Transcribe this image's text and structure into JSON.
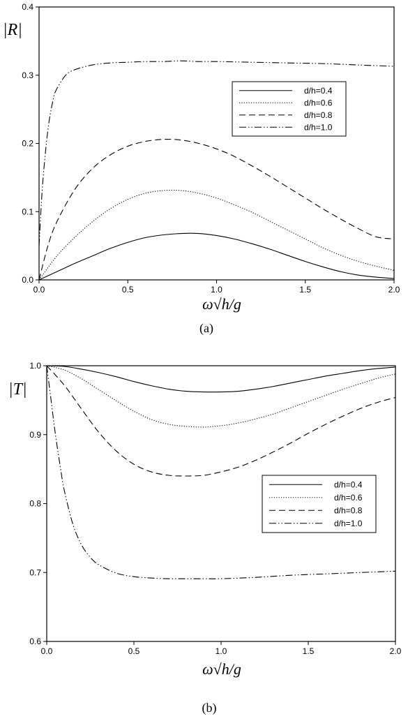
{
  "chart_data": [
    {
      "type": "line",
      "caption": "(a)",
      "ylabel": "|R|",
      "xlabel": "ω√h/g",
      "xlim": [
        0,
        2.0
      ],
      "ylim": [
        0,
        0.4
      ],
      "xticks": [
        "0.0",
        "0.5",
        "1.0",
        "1.5",
        "2.0"
      ],
      "yticks": [
        "0.0",
        "0.1",
        "0.2",
        "0.3",
        "0.4"
      ],
      "legend_position": "top-right",
      "grid": false,
      "series": [
        {
          "name": "d/h=0.4",
          "style": "solid",
          "x": [
            0,
            0.1,
            0.2,
            0.3,
            0.4,
            0.5,
            0.6,
            0.7,
            0.8,
            0.9,
            1.0,
            1.1,
            1.2,
            1.3,
            1.4,
            1.5,
            1.6,
            1.7,
            1.8,
            1.9,
            2.0
          ],
          "y": [
            0,
            0.012,
            0.024,
            0.035,
            0.046,
            0.055,
            0.062,
            0.066,
            0.068,
            0.068,
            0.065,
            0.06,
            0.053,
            0.045,
            0.036,
            0.027,
            0.019,
            0.012,
            0.007,
            0.004,
            0.002
          ]
        },
        {
          "name": "d/h=0.6",
          "style": "dotted",
          "x": [
            0,
            0.1,
            0.2,
            0.3,
            0.4,
            0.5,
            0.6,
            0.7,
            0.8,
            0.9,
            1.0,
            1.1,
            1.2,
            1.3,
            1.4,
            1.5,
            1.6,
            1.7,
            1.8,
            1.9,
            2.0
          ],
          "y": [
            0,
            0.035,
            0.062,
            0.085,
            0.104,
            0.118,
            0.127,
            0.131,
            0.131,
            0.127,
            0.12,
            0.11,
            0.099,
            0.086,
            0.073,
            0.06,
            0.047,
            0.036,
            0.027,
            0.02,
            0.014
          ]
        },
        {
          "name": "d/h=0.8",
          "style": "dashed",
          "x": [
            0,
            0.05,
            0.1,
            0.2,
            0.3,
            0.4,
            0.5,
            0.6,
            0.7,
            0.8,
            0.9,
            1.0,
            1.1,
            1.2,
            1.3,
            1.4,
            1.5,
            1.6,
            1.7,
            1.8,
            1.9,
            2.0
          ],
          "y": [
            0,
            0.05,
            0.085,
            0.132,
            0.163,
            0.183,
            0.196,
            0.203,
            0.206,
            0.205,
            0.2,
            0.192,
            0.181,
            0.167,
            0.152,
            0.136,
            0.12,
            0.104,
            0.089,
            0.075,
            0.063,
            0.06
          ]
        },
        {
          "name": "d/h=1.0",
          "style": "dashdotdot",
          "x": [
            0,
            0.02,
            0.05,
            0.08,
            0.1,
            0.15,
            0.2,
            0.3,
            0.4,
            0.5,
            0.6,
            0.7,
            0.8,
            0.9,
            1.0,
            1.2,
            1.4,
            1.6,
            1.8,
            2.0
          ],
          "y": [
            0.05,
            0.14,
            0.22,
            0.265,
            0.28,
            0.3,
            0.308,
            0.315,
            0.318,
            0.319,
            0.32,
            0.32,
            0.321,
            0.32,
            0.32,
            0.319,
            0.318,
            0.317,
            0.315,
            0.313
          ]
        }
      ]
    },
    {
      "type": "line",
      "caption": "(b)",
      "ylabel": "|T|",
      "xlabel": "ω√h/g",
      "xlim": [
        0,
        2.0
      ],
      "ylim": [
        0.6,
        1.0
      ],
      "xticks": [
        "0.0",
        "0.5",
        "1.0",
        "1.5",
        "2.0"
      ],
      "yticks": [
        "0.6",
        "0.7",
        "0.8",
        "0.9",
        "1.0"
      ],
      "legend_position": "center-right",
      "grid": false,
      "series": [
        {
          "name": "d/h=0.4",
          "style": "solid",
          "x": [
            0,
            0.1,
            0.2,
            0.3,
            0.4,
            0.5,
            0.6,
            0.7,
            0.8,
            0.9,
            1.0,
            1.1,
            1.2,
            1.3,
            1.4,
            1.5,
            1.6,
            1.7,
            1.8,
            1.9,
            2.0
          ],
          "y": [
            1.0,
            0.999,
            0.995,
            0.99,
            0.984,
            0.977,
            0.971,
            0.966,
            0.963,
            0.962,
            0.962,
            0.963,
            0.966,
            0.97,
            0.975,
            0.98,
            0.985,
            0.989,
            0.993,
            0.996,
            0.998
          ]
        },
        {
          "name": "d/h=0.6",
          "style": "dotted",
          "x": [
            0,
            0.1,
            0.2,
            0.3,
            0.4,
            0.5,
            0.6,
            0.7,
            0.8,
            0.9,
            1.0,
            1.1,
            1.2,
            1.3,
            1.4,
            1.5,
            1.6,
            1.7,
            1.8,
            1.9,
            2.0
          ],
          "y": [
            1.0,
            0.994,
            0.981,
            0.965,
            0.949,
            0.934,
            0.922,
            0.915,
            0.912,
            0.911,
            0.913,
            0.917,
            0.923,
            0.93,
            0.939,
            0.948,
            0.957,
            0.966,
            0.974,
            0.982,
            0.988
          ]
        },
        {
          "name": "d/h=0.8",
          "style": "dashed",
          "x": [
            0,
            0.1,
            0.2,
            0.3,
            0.4,
            0.5,
            0.6,
            0.7,
            0.8,
            0.9,
            1.0,
            1.1,
            1.2,
            1.3,
            1.4,
            1.5,
            1.6,
            1.7,
            1.8,
            1.9,
            2.0
          ],
          "y": [
            1.0,
            0.972,
            0.937,
            0.903,
            0.876,
            0.857,
            0.846,
            0.841,
            0.84,
            0.841,
            0.846,
            0.853,
            0.863,
            0.875,
            0.888,
            0.902,
            0.915,
            0.927,
            0.938,
            0.947,
            0.954
          ]
        },
        {
          "name": "d/h=1.0",
          "style": "dashdotdot",
          "x": [
            0,
            0.02,
            0.05,
            0.08,
            0.1,
            0.15,
            0.2,
            0.25,
            0.3,
            0.4,
            0.5,
            0.6,
            0.7,
            0.8,
            0.9,
            1.0,
            1.2,
            1.4,
            1.6,
            1.8,
            2.0
          ],
          "y": [
            1.0,
            0.96,
            0.9,
            0.85,
            0.82,
            0.77,
            0.74,
            0.722,
            0.711,
            0.699,
            0.694,
            0.692,
            0.691,
            0.691,
            0.691,
            0.691,
            0.693,
            0.696,
            0.698,
            0.7,
            0.702
          ]
        }
      ]
    }
  ]
}
